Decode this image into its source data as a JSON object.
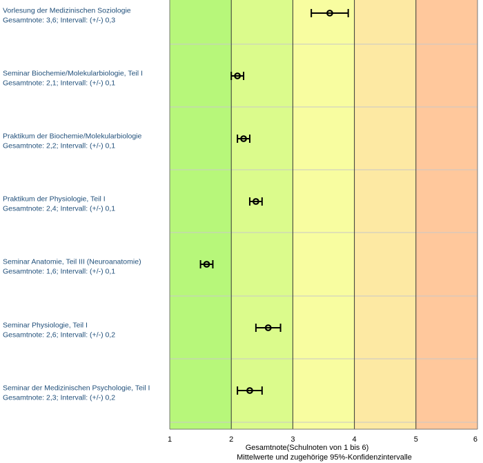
{
  "chart_data": {
    "type": "scatter",
    "xlim": [
      1,
      6
    ],
    "x_ticks": [
      "1",
      "2",
      "3",
      "4",
      "5",
      "6"
    ],
    "xlabel": "Gesamtnote(Schulnoten von 1 bis 6)",
    "xlabel_sub": "Mittelwerte und zugehörige 95%-Konfidenzintervalle",
    "zone_colors": [
      "#b7f77a",
      "#dbfb8c",
      "#f8fda0",
      "#fde9a3",
      "#ffc89c"
    ],
    "grid": "vertical-and-horizontal",
    "items": [
      {
        "title": "Vorlesung der Medizinischen Soziologie",
        "subtitle": "Gesamtnote: 3,6;  Intervall: (+/-) 0,3",
        "mean": 3.6,
        "ci": 0.3
      },
      {
        "title": "Seminar Biochemie/Molekularbiologie, Teil I",
        "subtitle": "Gesamtnote: 2,1;  Intervall: (+/-) 0,1",
        "mean": 2.1,
        "ci": 0.1
      },
      {
        "title": "Praktikum der Biochemie/Molekularbiologie",
        "subtitle": "Gesamtnote: 2,2;  Intervall: (+/-) 0,1",
        "mean": 2.2,
        "ci": 0.1
      },
      {
        "title": "Praktikum der Physiologie, Teil I",
        "subtitle": "Gesamtnote: 2,4;  Intervall: (+/-) 0,1",
        "mean": 2.4,
        "ci": 0.1
      },
      {
        "title": "Seminar Anatomie, Teil III (Neuroanatomie)",
        "subtitle": "Gesamtnote: 1,6;  Intervall: (+/-) 0,1",
        "mean": 1.6,
        "ci": 0.1
      },
      {
        "title": "Seminar Physiologie, Teil I",
        "subtitle": "Gesamtnote: 2,6;  Intervall: (+/-) 0,2",
        "mean": 2.6,
        "ci": 0.2
      },
      {
        "title": "Seminar der Medizinischen Psychologie, Teil I",
        "subtitle": "Gesamtnote: 2,3;  Intervall: (+/-) 0,2",
        "mean": 2.3,
        "ci": 0.2
      }
    ]
  }
}
